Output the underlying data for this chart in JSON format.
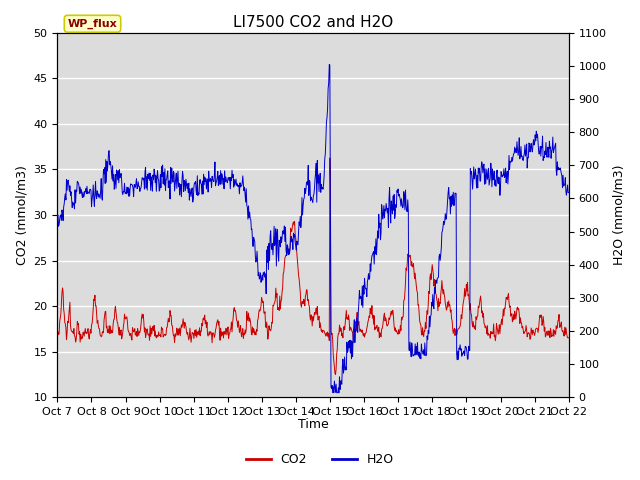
{
  "title": "LI7500 CO2 and H2O",
  "xlabel": "Time",
  "ylabel_left": "CO2 (mmol/m3)",
  "ylabel_right": "H2O (mmol/m3)",
  "annotation_text": "WP_flux",
  "x_tick_labels": [
    "Oct 7",
    "Oct 8",
    "Oct 9",
    "Oct 10",
    "Oct 11",
    "Oct 12",
    "Oct 13",
    "Oct 14",
    "Oct 15",
    "Oct 16",
    "Oct 17",
    "Oct 18",
    "Oct 19",
    "Oct 20",
    "Oct 21",
    "Oct 22"
  ],
  "ylim_left": [
    10,
    50
  ],
  "ylim_right": [
    0,
    1100
  ],
  "co2_color": "#cc0000",
  "h2o_color": "#0000cc",
  "background_color": "#dcdcdc",
  "annotation_facecolor": "#ffffcc",
  "annotation_edgecolor": "#cccc00",
  "legend_co2": "CO2",
  "legend_h2o": "H2O",
  "title_fontsize": 11,
  "tick_fontsize": 8,
  "label_fontsize": 9
}
